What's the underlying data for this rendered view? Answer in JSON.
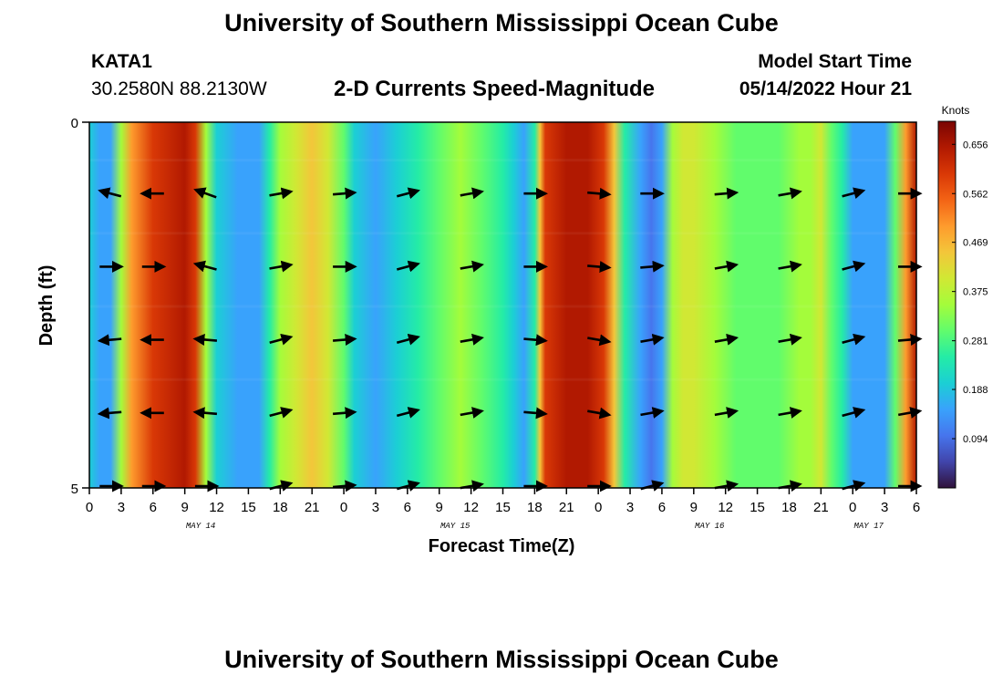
{
  "header": {
    "title": "University of Southern Mississippi Ocean Cube",
    "station_id": "KATA1",
    "coords": "30.2580N  88.2130W",
    "subtitle": "2-D Currents Speed-Magnitude",
    "model_start_label": "Model Start Time",
    "model_start_value": "05/14/2022 Hour 21"
  },
  "footer": {
    "title": "University of Southern Mississippi Ocean Cube"
  },
  "chart_data": {
    "type": "heatmap",
    "title": "2-D Currents Speed-Magnitude",
    "xlabel": "Forecast Time(Z)",
    "ylabel": "Depth (ft)",
    "xlim": [
      0,
      78
    ],
    "ylim": [
      0,
      5
    ],
    "x_ticks": [
      0,
      3,
      6,
      9,
      12,
      15,
      18,
      21,
      24,
      27,
      30,
      33,
      36,
      39,
      42,
      45,
      48,
      51,
      54,
      57,
      60,
      63,
      66,
      69,
      72,
      75,
      78
    ],
    "x_tick_labels": [
      "0",
      "3",
      "6",
      "9",
      "12",
      "15",
      "18",
      "21",
      "0",
      "3",
      "6",
      "9",
      "12",
      "15",
      "18",
      "21",
      "0",
      "3",
      "6",
      "9",
      "12",
      "15",
      "18",
      "21",
      "0",
      "3",
      "6"
    ],
    "y_ticks": [
      0,
      5
    ],
    "y_tick_labels": [
      "0",
      "5"
    ],
    "date_labels": [
      {
        "x": 10.5,
        "label": "MAY 14"
      },
      {
        "x": 34.5,
        "label": "MAY 15"
      },
      {
        "x": 58.5,
        "label": "MAY 16"
      },
      {
        "x": 73.5,
        "label": "MAY 17"
      }
    ],
    "colorbar": {
      "label": "Knots",
      "range": [
        0,
        0.7
      ],
      "ticks": [
        0.094,
        0.188,
        0.281,
        0.375,
        0.469,
        0.562,
        0.656
      ],
      "tick_labels": [
        "0.094",
        "0.188",
        "0.281",
        "0.375",
        "0.469",
        "0.562",
        "0.656"
      ],
      "colors": [
        "#30123b",
        "#4145ab",
        "#4675ed",
        "#39a2fc",
        "#1bcfd4",
        "#24eca6",
        "#61fc6c",
        "#a4fc3b",
        "#d1e834",
        "#f3c63a",
        "#fe9b2d",
        "#f36315",
        "#d93806",
        "#b11901",
        "#7a0402"
      ]
    },
    "speed_profile_knots": [
      [
        0,
        0.2
      ],
      [
        1,
        0.14
      ],
      [
        2,
        0.17
      ],
      [
        3,
        0.34
      ],
      [
        4,
        0.52
      ],
      [
        6,
        0.61
      ],
      [
        9,
        0.66
      ],
      [
        10,
        0.6
      ],
      [
        11,
        0.36
      ],
      [
        12,
        0.18
      ],
      [
        14,
        0.13
      ],
      [
        16,
        0.17
      ],
      [
        17,
        0.24
      ],
      [
        18,
        0.33
      ],
      [
        19.5,
        0.42
      ],
      [
        21,
        0.46
      ],
      [
        22.5,
        0.42
      ],
      [
        24,
        0.32
      ],
      [
        25,
        0.2
      ],
      [
        27,
        0.17
      ],
      [
        29,
        0.19
      ],
      [
        31,
        0.26
      ],
      [
        33,
        0.32
      ],
      [
        35,
        0.34
      ],
      [
        37,
        0.31
      ],
      [
        39,
        0.24
      ],
      [
        40,
        0.18
      ],
      [
        41,
        0.17
      ],
      [
        42,
        0.25
      ],
      [
        42.5,
        0.44
      ],
      [
        43,
        0.58
      ],
      [
        45,
        0.66
      ],
      [
        47,
        0.66
      ],
      [
        48.5,
        0.6
      ],
      [
        49.5,
        0.44
      ],
      [
        50.5,
        0.26
      ],
      [
        52,
        0.13
      ],
      [
        53,
        0.11
      ],
      [
        54,
        0.16
      ],
      [
        55,
        0.34
      ],
      [
        56,
        0.42
      ],
      [
        57,
        0.4
      ],
      [
        59,
        0.35
      ],
      [
        61,
        0.31
      ],
      [
        63,
        0.3
      ],
      [
        65,
        0.31
      ],
      [
        67,
        0.33
      ],
      [
        68,
        0.36
      ],
      [
        69,
        0.38
      ],
      [
        70,
        0.32
      ],
      [
        71,
        0.24
      ],
      [
        72,
        0.17
      ],
      [
        73,
        0.14
      ],
      [
        74,
        0.13
      ],
      [
        75,
        0.17
      ],
      [
        76,
        0.29
      ],
      [
        77,
        0.48
      ],
      [
        78,
        0.66
      ]
    ],
    "vector_rows_depth_ft": [
      1,
      2,
      3,
      4,
      5
    ],
    "vector_times": [
      2,
      6,
      11,
      18,
      24,
      30,
      36,
      42,
      48,
      53,
      60,
      66,
      72,
      78
    ],
    "vector_angles_deg": [
      [
        165,
        180,
        160,
        10,
        5,
        15,
        10,
        0,
        355,
        0,
        5,
        10,
        15,
        0
      ],
      [
        0,
        0,
        165,
        10,
        0,
        15,
        10,
        0,
        355,
        5,
        10,
        10,
        15,
        0
      ],
      [
        185,
        180,
        175,
        15,
        5,
        15,
        10,
        355,
        350,
        10,
        10,
        10,
        15,
        5
      ],
      [
        185,
        180,
        175,
        15,
        5,
        15,
        10,
        355,
        350,
        10,
        10,
        10,
        15,
        10
      ],
      [
        0,
        0,
        0,
        15,
        5,
        15,
        10,
        0,
        0,
        15,
        10,
        10,
        15,
        0
      ]
    ]
  }
}
